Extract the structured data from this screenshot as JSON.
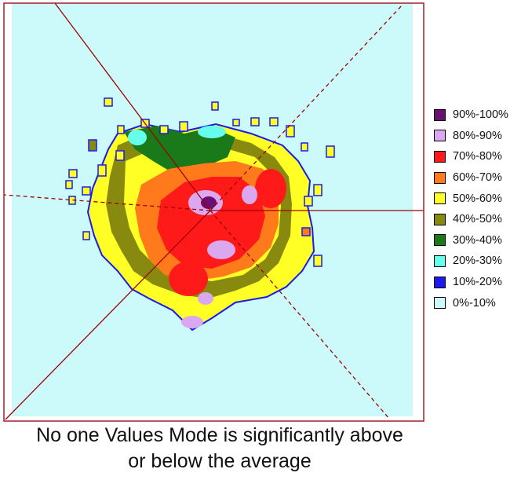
{
  "chart_data": {
    "type": "heatmap",
    "title": "",
    "caption_line1": "No one Values Mode is significantly above",
    "caption_line2": "or below the average",
    "legend": [
      {
        "label": "90%-100%",
        "color": "#6b0f73"
      },
      {
        "label": "80%-90%",
        "color": "#dba8ef"
      },
      {
        "label": "70%-80%",
        "color": "#ff1a1a"
      },
      {
        "label": "60%-70%",
        "color": "#ff7a1a"
      },
      {
        "label": "50%-60%",
        "color": "#ffff26"
      },
      {
        "label": "40%-50%",
        "color": "#888a10"
      },
      {
        "label": "30%-40%",
        "color": "#1a7a1a"
      },
      {
        "label": "20%-30%",
        "color": "#66ffee"
      },
      {
        "label": "10%-20%",
        "color": "#1a1aee"
      },
      {
        "label": "0%-10%",
        "color": "#ccfafa"
      }
    ],
    "regions": [
      {
        "band": "50%-60%",
        "description": "outer fringe of the blob"
      },
      {
        "band": "40%-50%",
        "description": "left and upper ring"
      },
      {
        "band": "30%-40%",
        "description": "upper-left lobe"
      },
      {
        "band": "20%-30%",
        "description": "upper fringe"
      },
      {
        "band": "60%-70%",
        "description": "broad central body"
      },
      {
        "band": "70%-80%",
        "description": "inner core"
      },
      {
        "band": "80%-90%",
        "description": "core hot spots"
      },
      {
        "band": "90%-100%",
        "description": "centre peak"
      }
    ]
  }
}
